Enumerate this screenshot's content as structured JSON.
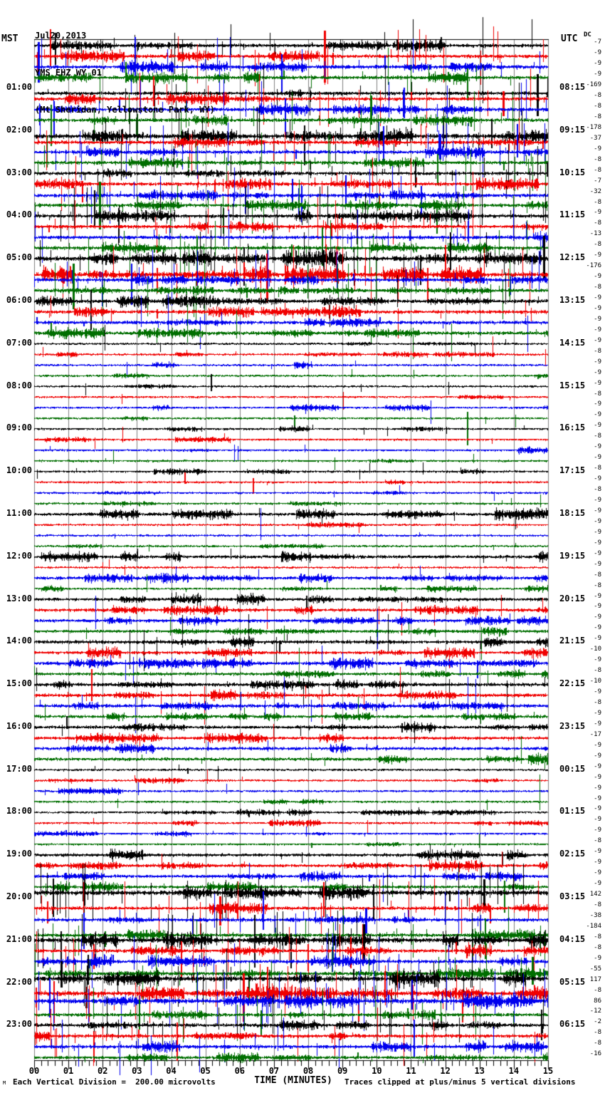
{
  "title": {
    "date": "Jul20,2013",
    "station": "YMS EHZ WY 01",
    "location": "(Mt Sheridan, Yellowstone Park, WY)"
  },
  "axes": {
    "left_label": "MST",
    "right_label": "UTC",
    "dc_label": "DC",
    "x_axis_label": "TIME (MINUTES)",
    "x_ticks": [
      "00",
      "01",
      "02",
      "03",
      "04",
      "05",
      "06",
      "07",
      "08",
      "09",
      "10",
      "11",
      "12",
      "13",
      "14",
      "15"
    ],
    "left_hour_labels": [
      "01:00",
      "02:00",
      "03:00",
      "04:00",
      "05:00",
      "06:00",
      "07:00",
      "08:00",
      "09:00",
      "10:00",
      "11:00",
      "12:00",
      "13:00",
      "14:00",
      "15:00",
      "16:00",
      "17:00",
      "18:00",
      "19:00",
      "20:00",
      "21:00",
      "22:00",
      "23:00"
    ],
    "right_hour_labels": [
      "08:15",
      "09:15",
      "10:15",
      "11:15",
      "12:15",
      "13:15",
      "14:15",
      "15:15",
      "16:15",
      "17:15",
      "18:15",
      "19:15",
      "20:15",
      "21:15",
      "22:15",
      "23:15",
      "00:15",
      "01:15",
      "02:15",
      "03:15",
      "04:15",
      "05:15",
      "06:15"
    ]
  },
  "footer": {
    "corner_mark": "M",
    "scale_note": "Each Vertical Division =  200.00 microvolts",
    "clip_note": "Traces clipped at plus/minus 5 vertical divisions"
  },
  "colors": {
    "trace_cycle": [
      "#000000",
      "#f00000",
      "#0000ee",
      "#006e00"
    ],
    "grid": "#7f7f7f",
    "border": "#000000",
    "background": "#ffffff"
  },
  "chart_data": {
    "type": "line",
    "subtype": "helicorder-seismogram",
    "title": "YMS EHZ WY 01 (Mt Sheridan, Yellowstone Park, WY) Jul20,2013",
    "xlabel": "TIME (MINUTES)",
    "x_range_minutes": [
      0,
      15
    ],
    "minutes_per_line": 15,
    "lines_per_hour": 4,
    "total_lines": 96,
    "line_color_cycle": [
      "black",
      "red",
      "blue",
      "green"
    ],
    "vertical_division_microvolts": 200.0,
    "clip_divisions": 5,
    "dc_offsets_microvolts": [
      -7,
      -9,
      -9,
      -9,
      -169,
      -8,
      -8,
      -8,
      -178,
      -37,
      -9,
      -8,
      -8,
      -7,
      -32,
      -8,
      -9,
      -8,
      -13,
      -8,
      -9,
      -176,
      -9,
      -8,
      -9,
      -9,
      -9,
      -9,
      -9,
      -8,
      -9,
      -9,
      -9,
      -8,
      -9,
      -9,
      -9,
      -8,
      -9,
      -9,
      -8,
      -9,
      -8,
      -9,
      -9,
      -9,
      -9,
      -9,
      -9,
      -9,
      -8,
      -8,
      -9,
      -9,
      -9,
      -9,
      -9,
      -10,
      -9,
      -8,
      -10,
      -9,
      -8,
      -9,
      -9,
      -17,
      -9,
      -9,
      -9,
      -9,
      -9,
      -9,
      -9,
      -9,
      -9,
      -8,
      -9,
      -9,
      -9,
      -9,
      142,
      -8,
      -38,
      -184,
      -8,
      -8,
      -9,
      -55,
      117,
      -8,
      86,
      -12,
      -2,
      -8,
      -8,
      -16
    ],
    "activity_levels": [
      4,
      4,
      4,
      4,
      4,
      4,
      4,
      4,
      5,
      4,
      4,
      4,
      4,
      4,
      4,
      4,
      4,
      4,
      4,
      4,
      5,
      5,
      4,
      4,
      3,
      3,
      3,
      3,
      1,
      1,
      1,
      1,
      1,
      1,
      1,
      1,
      1,
      1,
      1,
      1,
      1,
      1,
      1,
      1,
      2,
      1,
      1,
      1,
      2,
      1,
      2,
      1,
      2,
      2,
      2,
      2,
      3,
      2,
      3,
      2,
      3,
      3,
      3,
      2,
      2,
      2,
      2,
      2,
      1,
      1,
      1,
      1,
      1,
      1,
      1,
      1,
      2,
      2,
      2,
      2,
      5,
      4,
      4,
      4,
      5,
      4,
      4,
      4,
      5,
      5,
      5,
      4,
      4,
      4,
      4,
      2
    ],
    "seed": 20130720
  }
}
